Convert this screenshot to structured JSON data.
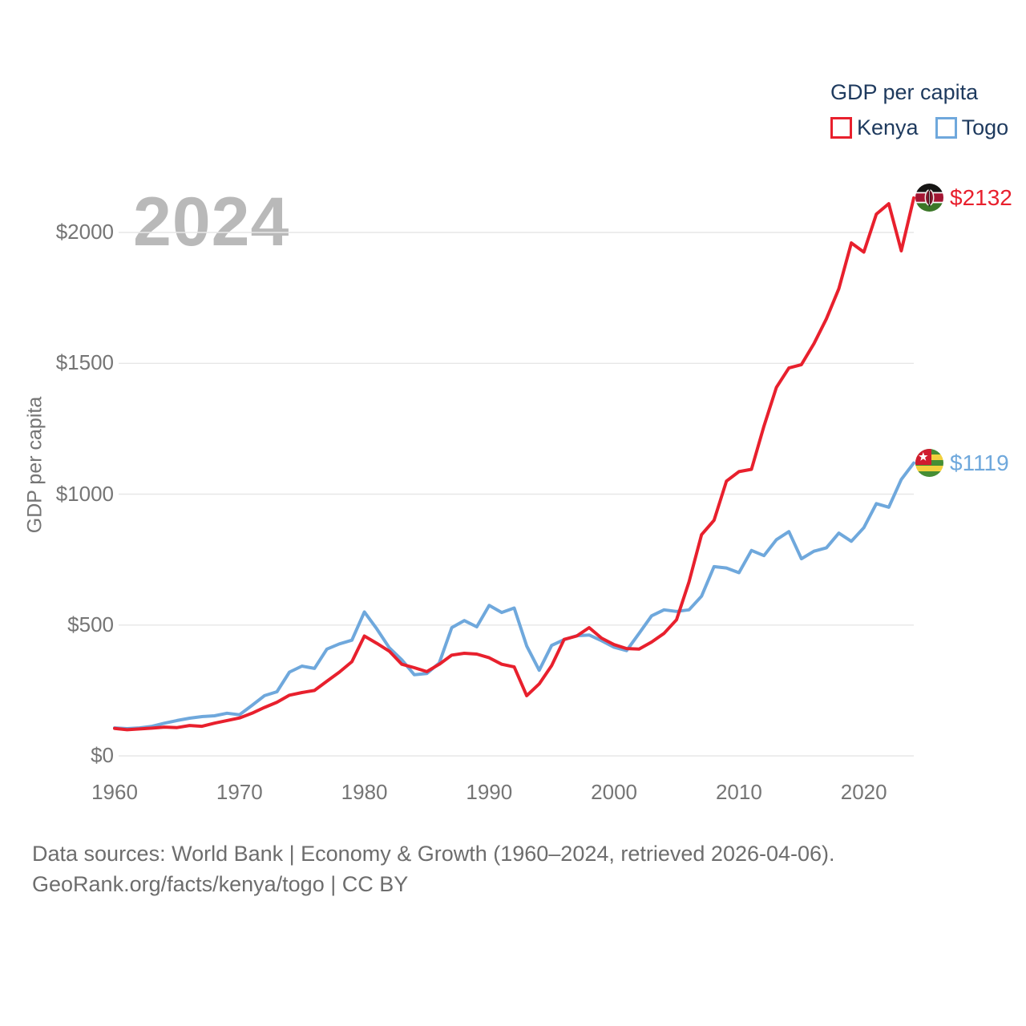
{
  "legend": {
    "title": "GDP per capita",
    "items": [
      {
        "label": "Kenya"
      },
      {
        "label": "Togo"
      }
    ]
  },
  "watermark": {
    "text": "2024"
  },
  "y_axis": {
    "title": "GDP per capita"
  },
  "caption": {
    "line1": "Data sources: World Bank | Economy & Growth (1960–2024, retrieved 2026-04-06).",
    "line2": "GeoRank.org/facts/kenya/togo | CC BY"
  },
  "icons": {
    "kenya_flag": "kenya-flag-icon (circular flag: black/red/green bands with shield)",
    "togo_flag": "togo-flag-icon (circular flag: green/yellow stripes, red canton with white star)",
    "kenya_swatch": "red outlined square",
    "togo_swatch": "blue outlined square"
  },
  "colors": {
    "kenya": "#e8202d",
    "togo": "#6fa8dc",
    "legend_text": "#1e3a5e",
    "axis_text": "#757575",
    "gridline": "#e7e7e7",
    "watermark": "#b9b9b9",
    "caption_text": "#6d6d6d"
  },
  "chart_data": {
    "type": "line",
    "title": "GDP per capita",
    "ylabel": "GDP per capita",
    "xlabel": "",
    "grid": "horizontal",
    "legend_position": "top-right",
    "x_range": [
      1960,
      2024
    ],
    "x_ticks": [
      1960,
      1970,
      1980,
      1990,
      2000,
      2010,
      2020
    ],
    "y_ticks": [
      {
        "value": 0,
        "label": "$0"
      },
      {
        "value": 500,
        "label": "$500"
      },
      {
        "value": 1000,
        "label": "$1000"
      },
      {
        "value": 1500,
        "label": "$1500"
      },
      {
        "value": 2000,
        "label": "$2000"
      }
    ],
    "ylim": [
      0,
      2200
    ],
    "series": [
      {
        "name": "Kenya",
        "color": "#e8202d",
        "end_label": "$2132",
        "end_value": 2132,
        "values": [
          105,
          100,
          103,
          106,
          110,
          108,
          116,
          113,
          125,
          135,
          145,
          163,
          185,
          205,
          232,
          242,
          250,
          285,
          320,
          360,
          458,
          430,
          400,
          350,
          337,
          322,
          350,
          385,
          392,
          389,
          375,
          350,
          340,
          230,
          275,
          345,
          445,
          458,
          490,
          450,
          425,
          410,
          408,
          435,
          468,
          520,
          665,
          845,
          900,
          1050,
          1086,
          1095,
          1260,
          1408,
          1482,
          1495,
          1575,
          1670,
          1785,
          1960,
          1925,
          2070,
          2110,
          1930,
          2132
        ]
      },
      {
        "name": "Togo",
        "color": "#6fa8dc",
        "end_label": "$1119",
        "end_value": 1119,
        "values": [
          107,
          104,
          107,
          113,
          125,
          135,
          144,
          150,
          153,
          163,
          157,
          193,
          230,
          245,
          320,
          343,
          334,
          408,
          428,
          442,
          550,
          485,
          413,
          367,
          310,
          315,
          355,
          490,
          517,
          493,
          575,
          548,
          565,
          420,
          327,
          422,
          444,
          459,
          462,
          440,
          415,
          402,
          468,
          535,
          558,
          552,
          558,
          610,
          723,
          718,
          700,
          785,
          765,
          826,
          857,
          753,
          782,
          795,
          851,
          820,
          872,
          964,
          950,
          1056,
          1119
        ]
      }
    ]
  }
}
